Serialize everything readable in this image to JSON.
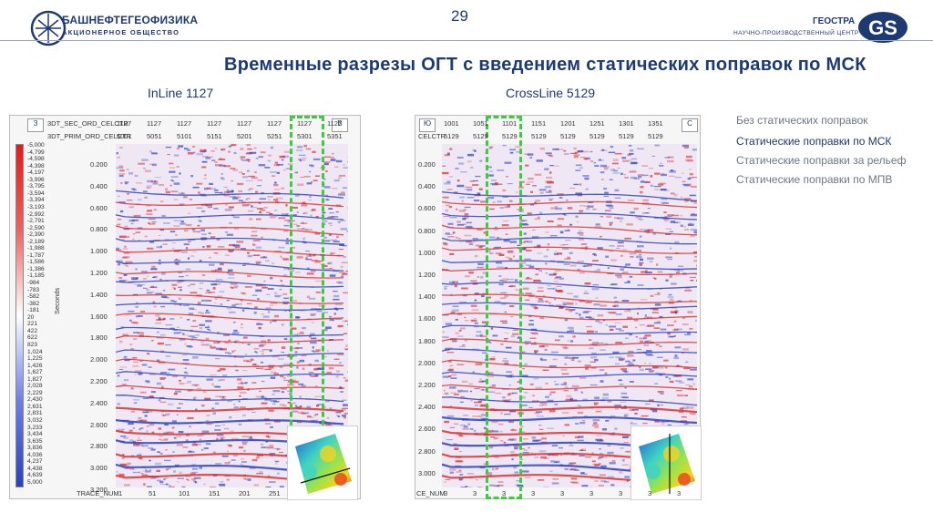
{
  "header": {
    "org_name": "БАШНЕФТЕГЕОФИЗИКА",
    "org_sub": "АКЦИОНЕРНОЕ ОБЩЕСТВО",
    "page_number": "29",
    "partner_name": "ГЕОСТРА",
    "partner_sub": "НАУЧНО-ПРОИЗВОДСТВЕННЫЙ ЦЕНТР",
    "partner_logo_text": "GS"
  },
  "title": "Временные разрезы ОГТ с введением статических поправок по МСК",
  "left_panel": {
    "subtitle": "InLine 1127",
    "corner_left": "З",
    "corner_right": "В",
    "header_row1_label": "3DT_SEC_ORD_CELCTR",
    "header_row1_values": [
      "1127",
      "1127",
      "1127",
      "1127",
      "1127",
      "1127",
      "1127",
      "1127"
    ],
    "header_row2_label": "3DT_PRIM_ORD_CELCTR",
    "header_row2_values": [
      "5001",
      "5051",
      "5101",
      "5151",
      "5201",
      "5251",
      "5301",
      "5351"
    ],
    "axis_label": "Seconds",
    "time_ticks": [
      "0.200",
      "0.400",
      "0.600",
      "0.800",
      "1.000",
      "1.200",
      "1.400",
      "1.600",
      "1.800",
      "2.000",
      "2.200",
      "2.400",
      "2.600",
      "2.800",
      "3.000",
      "3.200"
    ],
    "bottom_label": "TRACE_NUM",
    "bottom_ticks": [
      "1",
      "51",
      "101",
      "151",
      "201",
      "251"
    ],
    "colorbar_labels": [
      "-5,000",
      "-4,799",
      "-4,598",
      "-4,398",
      "-4,197",
      "-3,996",
      "-3,795",
      "-3,594",
      "-3,394",
      "-3,193",
      "-2,992",
      "-2,791",
      "-2,590",
      "-2,390",
      "-2,189",
      "-1,988",
      "-1,787",
      "-1,586",
      "-1,386",
      "-1,185",
      "-984",
      "-783",
      "-582",
      "-382",
      "-181",
      "20",
      "221",
      "422",
      "622",
      "823",
      "1,024",
      "1,225",
      "1,426",
      "1,627",
      "1,827",
      "2,028",
      "2,229",
      "2,430",
      "2,631",
      "2,831",
      "3,032",
      "3,233",
      "3,434",
      "3,635",
      "3,836",
      "4,036",
      "4,237",
      "4,438",
      "4,639",
      "5,000"
    ]
  },
  "right_panel": {
    "subtitle": "CrossLine 5129",
    "corner_left": "Ю",
    "corner_right": "С",
    "header_row1_values": [
      "1001",
      "1051",
      "1101",
      "1151",
      "1201",
      "1251",
      "1301",
      "1351"
    ],
    "header_row2_label": "CELCTR",
    "header_row2_values": [
      "5129",
      "5129",
      "5129",
      "5129",
      "5129",
      "5129",
      "5129",
      "5129"
    ],
    "time_ticks": [
      "0.200",
      "0.400",
      "0.600",
      "0.800",
      "1.000",
      "1.200",
      "1.400",
      "1.600",
      "1.800",
      "2.000",
      "2.200",
      "2.400",
      "2.600",
      "2.800",
      "3.000"
    ],
    "bottom_label": "CE_NUM",
    "bottom_ticks": [
      "3",
      "3",
      "3",
      "3",
      "3",
      "3",
      "3",
      "3",
      "3"
    ]
  },
  "options": [
    {
      "label": "Без статических поправок",
      "active": false
    },
    {
      "label": "Статические поправки по МСК",
      "active": true
    },
    {
      "label": "Статические поправки за рельеф",
      "active": false
    },
    {
      "label": "Статические поправки по МПВ",
      "active": false
    }
  ],
  "colors": {
    "brand": "#1d3a72",
    "highlight": "#3ecb3e",
    "positive": "#d62828",
    "negative": "#2a3fbf"
  }
}
